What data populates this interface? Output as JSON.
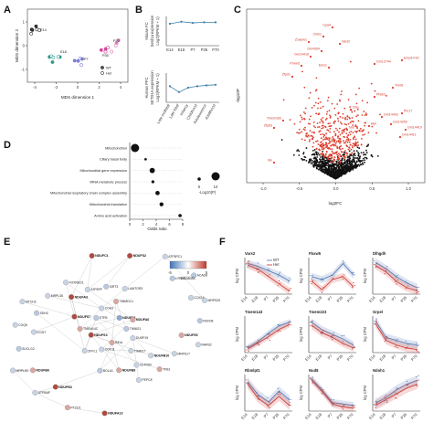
{
  "panels": {
    "A": {
      "letter": "A",
      "xlabel": "MDS dimension 1",
      "ylabel": "MDS dimension 2",
      "xticks": [
        "-4",
        "-2",
        "0",
        "2",
        "4"
      ],
      "yticks": [
        "1",
        "0",
        "-1"
      ],
      "annotations": [
        "E14",
        "E18",
        "P7",
        "P35",
        "P70"
      ],
      "legend": [
        {
          "label": "WT",
          "color": "#555555"
        },
        {
          "label": "Het",
          "color": "#ffffff"
        }
      ]
    },
    "B": {
      "letter": "B",
      "top_ylabel": [
        "Mouse FC",
        "Setd1a expression",
        "Log2(RPKM + 1)"
      ],
      "bottom_ylabel": [
        "Human PFC",
        "SETD1A expression",
        "Log2(RPKM + 1)"
      ],
      "top_xticks": [
        "E14",
        "E18",
        "P7",
        "P35",
        "P70"
      ],
      "bottom_xticks": [
        "Late midfetal",
        "Late fetal",
        "Infancy",
        "Childhood",
        "Adolescence",
        "Adulthood"
      ]
    },
    "C": {
      "letter": "C",
      "xlabel": "log2FC",
      "ylabel": "-log10P",
      "xticks": [
        "-1.0",
        "-0.5",
        "0.0",
        "0.5",
        "1.0"
      ],
      "genes": [
        {
          "name": "Cpa4"
        },
        {
          "name": "Cldn1"
        },
        {
          "name": "Zcwpw1"
        },
        {
          "name": "Vars2"
        },
        {
          "name": "Gm4364"
        },
        {
          "name": "Gm14418"
        },
        {
          "name": "Fbxw5"
        },
        {
          "name": "Ems1"
        },
        {
          "name": "Emc8-Fbh"
        },
        {
          "name": "Gm12744"
        },
        {
          "name": "Zfp91"
        },
        {
          "name": "Trmt6"
        },
        {
          "name": "Phkb3"
        },
        {
          "name": "Dbp"
        },
        {
          "name": "Gm14403"
        },
        {
          "name": "Gm14259"
        },
        {
          "name": "Tmem183"
        },
        {
          "name": "Zfp63"
        },
        {
          "name": "Gm14411"
        },
        {
          "name": "Gm14419"
        },
        {
          "name": "Atl4"
        },
        {
          "name": "Nat"
        },
        {
          "name": "Ciac"
        },
        {
          "name": "Scl43"
        },
        {
          "name": "Mx"
        },
        {
          "name": "Mpr"
        },
        {
          "name": "Pin17"
        }
      ]
    },
    "D": {
      "letter": "D",
      "xlabel": "Odds ratio",
      "xticks": [
        "0",
        "2",
        "4",
        "6",
        "8"
      ],
      "size_legend_label": "-Log10(P)",
      "size_legend_ticks": [
        "5",
        "10"
      ],
      "terms": [
        {
          "label": "Mitochondrion",
          "odds": 0.8,
          "size": 5.0
        },
        {
          "label": "Ciliary basal body",
          "odds": 2.4,
          "size": 1.5
        },
        {
          "label": "Mitochondrial gene expression",
          "odds": 3.4,
          "size": 3.2
        },
        {
          "label": "tRNA metabolic process",
          "odds": 3.5,
          "size": 1.8
        },
        {
          "label": "Mitochondrial respiratory chain complex assembly",
          "odds": 4.2,
          "size": 2.6
        },
        {
          "label": "Mitochondrial translation",
          "odds": 4.8,
          "size": 2.4
        },
        {
          "label": "Amino acid activation",
          "odds": 7.6,
          "size": 2.0
        }
      ]
    },
    "E": {
      "letter": "E",
      "colorbar_label": "t-statistic",
      "colorbar_ticks": [
        "-5",
        "0",
        "5"
      ],
      "nodes": [
        {
          "label": "TIMM21",
          "c": "#b8c9e0"
        },
        {
          "label": "DUSP19",
          "c": "#c8d4e6"
        },
        {
          "label": "TIMM17",
          "c": "#c8d4e6"
        },
        {
          "label": "RIDA",
          "c": "#dca7a0"
        },
        {
          "label": "COX11",
          "c": "#c8d4e6"
        },
        {
          "label": "ZFPL1",
          "c": "#c8d4e6"
        },
        {
          "label": "NDUFS3",
          "c": "#b04a3f"
        },
        {
          "label": "TMEM14C",
          "c": "#dca7a0"
        },
        {
          "label": "NDUFS7",
          "c": "#b04a3f"
        },
        {
          "label": "ETFB",
          "c": "#b8c9e0"
        },
        {
          "label": "COA3",
          "c": "#c8d4e6"
        },
        {
          "label": "TIMMDC1",
          "c": "#dca7a0"
        },
        {
          "label": "NDUFS6",
          "c": "#8fa9cf"
        },
        {
          "label": "NDUFA6",
          "c": "#dca7a0"
        },
        {
          "label": "NDUFB3",
          "c": "#b04a3f"
        },
        {
          "label": "NDUFC1",
          "c": "#b04a3f"
        },
        {
          "label": "NDUFB10",
          "c": "#c8d4e6"
        },
        {
          "label": "ECSIT",
          "c": "#c8d4e6"
        },
        {
          "label": "LYRM7",
          "c": "#b8c9e0"
        },
        {
          "label": "NDUFA13",
          "c": "#b04a3f"
        },
        {
          "label": "NDUFA3",
          "c": "#b04a3f"
        },
        {
          "label": "NDUFS5",
          "c": "#dca7a0"
        },
        {
          "label": "NDUFB6",
          "c": "#dca7a0"
        },
        {
          "label": "NDUFS2",
          "c": "#b04a3f"
        },
        {
          "label": "CEP290",
          "c": "#c8d4e6"
        },
        {
          "label": "SDHC",
          "c": "#b8c9e0"
        },
        {
          "label": "COX16",
          "c": "#c8d4e6"
        },
        {
          "label": "PTCD1",
          "c": "#dca7a0"
        },
        {
          "label": "ATP5PF",
          "c": "#c8d4e6"
        },
        {
          "label": "MRPS17",
          "c": "#c8d4e6"
        },
        {
          "label": "SUCLG2",
          "c": "#b8c9e0"
        },
        {
          "label": "ATP5PC1",
          "c": "#c8d4e6"
        },
        {
          "label": "NDUFB8",
          "c": "#dca7a0"
        },
        {
          "label": "MRPL35",
          "c": "#c8d4e6"
        },
        {
          "label": "FBXO8",
          "c": "#b8c9e0"
        },
        {
          "label": "ATP5MF",
          "c": "#c8d4e6"
        },
        {
          "label": "SIRT3",
          "c": "#b8c9e0"
        },
        {
          "label": "TFB1",
          "c": "#dca7a0"
        },
        {
          "label": "COQ5",
          "c": "#c8d4e6"
        },
        {
          "label": "ACAD8",
          "c": "#b8c9e0"
        },
        {
          "label": "BOLA1",
          "c": "#b8c9e0"
        },
        {
          "label": "FOXRED1",
          "c": "#c8d4e6"
        },
        {
          "label": "NARS2",
          "c": "#c8d4e6"
        },
        {
          "label": "MRPL53",
          "c": "#c8d4e6"
        },
        {
          "label": "LAMTOR3",
          "c": "#c8d4e6"
        },
        {
          "label": "PEPCE",
          "c": "#c8d4e6"
        },
        {
          "label": "MTCH2",
          "c": "#c8d4e6"
        },
        {
          "label": "MRPS25",
          "c": "#c8d4e6"
        }
      ]
    },
    "F": {
      "letter": "F",
      "ylabel": "log CPM",
      "xticks": [
        "E14",
        "E18",
        "P7",
        "P35",
        "P70"
      ],
      "legend": [
        {
          "label": "WT",
          "color": "#5c7fb8"
        },
        {
          "label": "Het",
          "color": "#d0433a"
        }
      ],
      "genes": [
        {
          "name": "Vars2",
          "wt": [
            5.1,
            4.9,
            4.6,
            4.3,
            3.9
          ],
          "het": [
            5.0,
            4.7,
            4.2,
            3.7,
            3.2
          ],
          "ylim": [
            3.0,
            5.5
          ]
        },
        {
          "name": "Fbxw5",
          "wt": [
            4.5,
            4.3,
            4.6,
            5.4,
            4.6
          ],
          "het": [
            4.2,
            3.6,
            4.3,
            4.5,
            3.8
          ],
          "ylim": [
            3.3,
            5.8
          ]
        },
        {
          "name": "Dlhgdh",
          "wt": [
            5.2,
            4.8,
            4.3,
            3.9,
            3.6
          ],
          "het": [
            5.0,
            4.6,
            4.0,
            3.6,
            3.4
          ],
          "ylim": [
            3.2,
            5.5
          ]
        },
        {
          "name": "Tmem143",
          "wt": [
            3.4,
            3.9,
            4.6,
            5.2,
            5.5
          ],
          "het": [
            3.3,
            3.8,
            4.3,
            4.9,
            5.3
          ],
          "ylim": [
            3.0,
            6.0
          ]
        },
        {
          "name": "Tmem223",
          "wt": [
            5.6,
            5.1,
            4.8,
            4.5,
            4.1
          ],
          "het": [
            5.4,
            4.9,
            4.6,
            4.2,
            3.9
          ],
          "ylim": [
            3.6,
            6.0
          ]
        },
        {
          "name": "Grpel",
          "wt": [
            4.5,
            3.4,
            3.2,
            3.0,
            2.9
          ],
          "het": [
            4.3,
            3.2,
            2.9,
            2.7,
            2.6
          ],
          "ylim": [
            2.4,
            4.8
          ]
        },
        {
          "name": "Rbmlpt1",
          "wt": [
            4.6,
            3.9,
            3.5,
            4.1,
            3.6
          ],
          "het": [
            4.5,
            3.7,
            3.3,
            3.8,
            3.3
          ],
          "ylim": [
            3.0,
            5.0
          ]
        },
        {
          "name": "Nud8",
          "wt": [
            5.3,
            4.5,
            3.6,
            3.5,
            3.4
          ],
          "het": [
            5.2,
            4.4,
            3.5,
            3.3,
            3.2
          ],
          "ylim": [
            3.0,
            5.6
          ]
        },
        {
          "name": "Ndoh1",
          "wt": [
            3.9,
            4.2,
            4.6,
            4.9,
            5.1
          ],
          "het": [
            3.8,
            4.1,
            4.4,
            4.7,
            4.9
          ],
          "ylim": [
            3.5,
            5.4
          ]
        }
      ]
    }
  }
}
